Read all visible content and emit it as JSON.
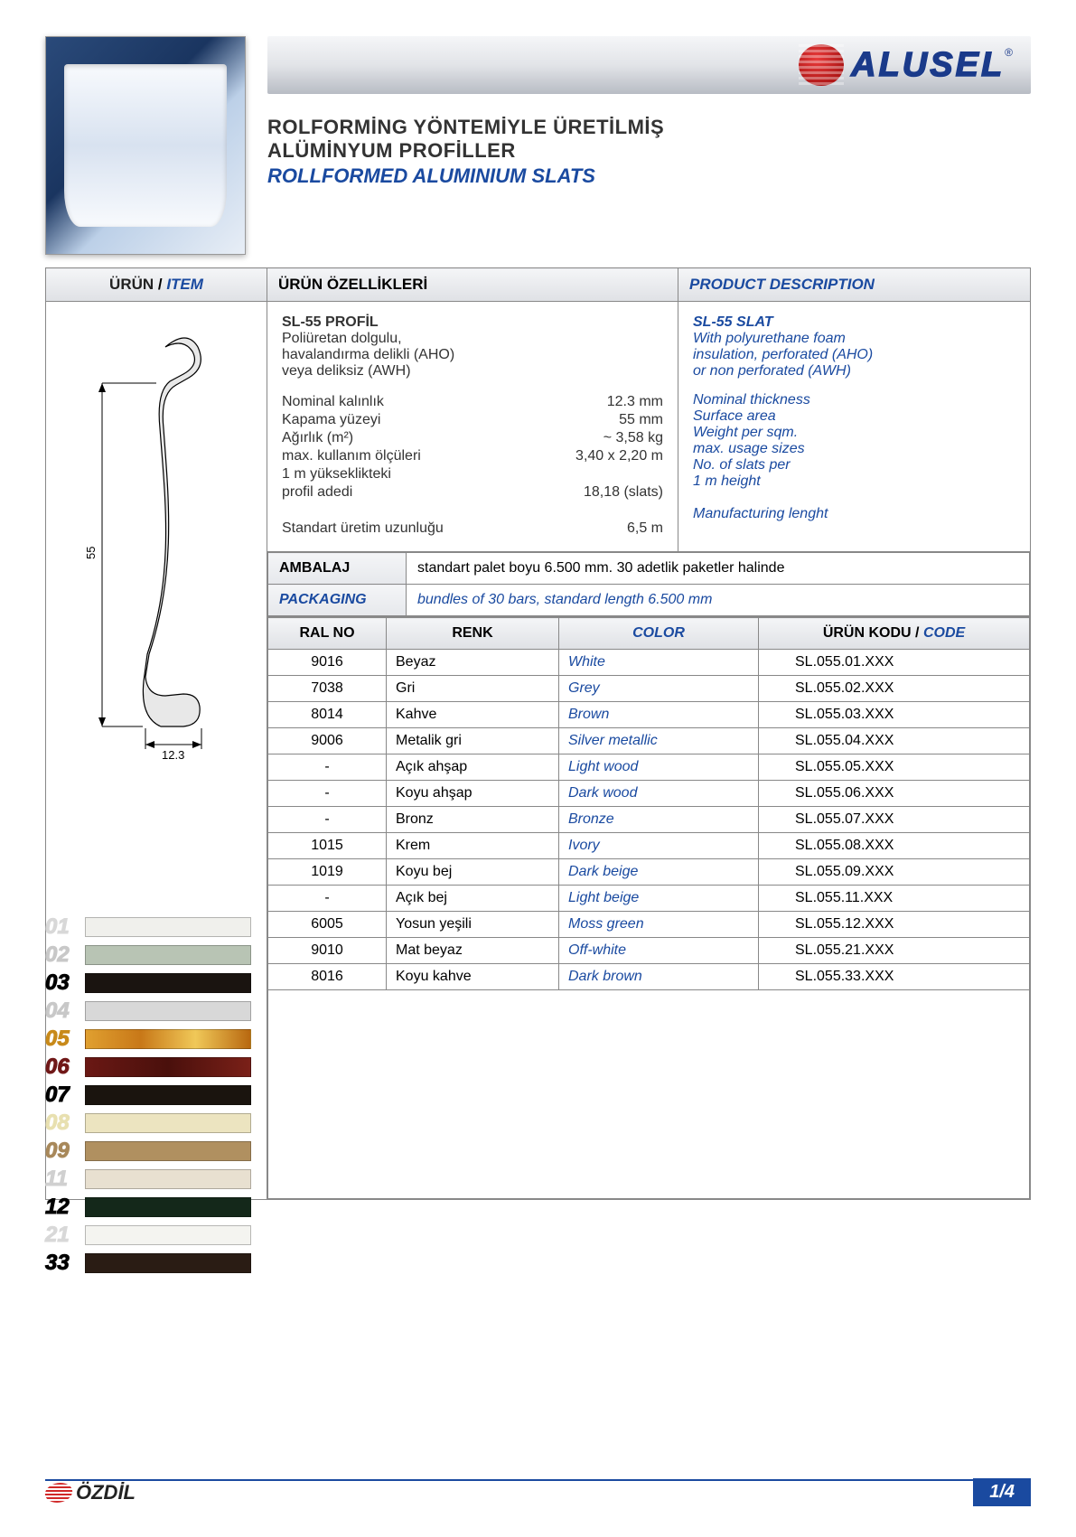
{
  "brand": "ALUSEL",
  "title_tr_line1": "ROLFORMİNG YÖNTEMİYLE ÜRETİLMİŞ",
  "title_tr_line2": "ALÜMİNYUM PROFİLLER",
  "title_en": "ROLLFORMED ALUMINIUM SLATS",
  "headers": {
    "item_tr": "ÜRÜN",
    "item_en": "ITEM",
    "props_tr": "ÜRÜN ÖZELLİKLERİ",
    "desc_en": "PRODUCT DESCRIPTION"
  },
  "product": {
    "name_tr": "SL-55 PROFİL",
    "body_tr_1": "Poliüretan dolgulu,",
    "body_tr_2": "havalandırma delikli (AHO)",
    "body_tr_3": "veya deliksiz (AWH)",
    "name_en": "SL-55 SLAT",
    "body_en_1": "With polyurethane foam",
    "body_en_2": "insulation, perforated (AHO)",
    "body_en_3": "or non perforated (AWH)"
  },
  "specs": [
    {
      "tr": "Nominal kalınlık",
      "val": "12.3 mm",
      "en": "Nominal thickness"
    },
    {
      "tr": "Kapama yüzeyi",
      "val": "55 mm",
      "en": "Surface area"
    },
    {
      "tr": "Ağırlık (m²)",
      "val": "~ 3,58 kg",
      "en": "Weight per sqm."
    },
    {
      "tr": "max. kullanım ölçüleri",
      "val": "3,40 x 2,20 m",
      "en": "max. usage sizes"
    },
    {
      "tr": "1 m yükseklikteki",
      "val": "",
      "en": "No. of slats per"
    },
    {
      "tr": "profil adedi",
      "val": "18,18 (slats)",
      "en": "1 m height"
    },
    {
      "tr": "",
      "val": "",
      "en": ""
    },
    {
      "tr": "Standart üretim uzunluğu",
      "val": "6,5 m",
      "en": "Manufacturing lenght"
    }
  ],
  "diagram": {
    "height_label": "55",
    "width_label": "12.3"
  },
  "packaging": {
    "label_tr": "AMBALAJ",
    "label_en": "PACKAGING",
    "text_tr": "standart palet boyu 6.500 mm. 30 adetlik paketler halinde",
    "text_en": "bundles of 30 bars, standard length  6.500 mm"
  },
  "color_headers": {
    "ral": "RAL NO",
    "renk": "RENK",
    "color": "COLOR",
    "code_tr": "ÜRÜN KODU",
    "code_en": "CODE"
  },
  "colors": [
    {
      "num": "01",
      "num_color": "#d8d8d8",
      "swatch": "#f0f0ec",
      "ral": "9016",
      "renk": "Beyaz",
      "color": "White",
      "code": "SL.055.01.XXX"
    },
    {
      "num": "02",
      "num_color": "#c8c8c8",
      "swatch": "#b8c4b4",
      "ral": "7038",
      "renk": "Gri",
      "color": "Grey",
      "code": "SL.055.02.XXX"
    },
    {
      "num": "03",
      "num_color": "#000000",
      "swatch": "#1a1410",
      "ral": "8014",
      "renk": "Kahve",
      "color": "Brown",
      "code": "SL.055.03.XXX"
    },
    {
      "num": "04",
      "num_color": "#c8c8c8",
      "swatch": "#d8d8d8",
      "ral": "9006",
      "renk": "Metalik gri",
      "color": "Silver metallic",
      "code": "SL.055.04.XXX"
    },
    {
      "num": "05",
      "num_color": "#c88a1a",
      "swatch": "linear-gradient(90deg,#e0a030,#c87818,#f0c858,#b86810)",
      "ral": "-",
      "renk": "Açık ahşap",
      "color": "Light wood",
      "code": "SL.055.05.XXX"
    },
    {
      "num": "06",
      "num_color": "#701818",
      "swatch": "linear-gradient(90deg,#6a1814,#4a100c,#7a2018)",
      "ral": "-",
      "renk": "Koyu ahşap",
      "color": "Dark wood",
      "code": "SL.055.06.XXX"
    },
    {
      "num": "07",
      "num_color": "#000000",
      "swatch": "#1a140e",
      "ral": "-",
      "renk": "Bronz",
      "color": "Bronze",
      "code": "SL.055.07.XXX"
    },
    {
      "num": "08",
      "num_color": "#e8e0b0",
      "swatch": "#ece4c0",
      "ral": "1015",
      "renk": "Krem",
      "color": "Ivory",
      "code": "SL.055.08.XXX"
    },
    {
      "num": "09",
      "num_color": "#a8885a",
      "swatch": "#b09060",
      "ral": "1019",
      "renk": "Koyu bej",
      "color": "Dark beige",
      "code": "SL.055.09.XXX"
    },
    {
      "num": "11",
      "num_color": "#d0d0d0",
      "swatch": "#e8e0d0",
      "ral": "-",
      "renk": "Açık bej",
      "color": "Light beige",
      "code": "SL.055.11.XXX"
    },
    {
      "num": "12",
      "num_color": "#000000",
      "swatch": "#14281a",
      "ral": "6005",
      "renk": "Yosun yeşili",
      "color": "Moss green",
      "code": "SL.055.12.XXX"
    },
    {
      "num": "21",
      "num_color": "#d8d8d8",
      "swatch": "#f4f4f0",
      "ral": "9010",
      "renk": "Mat beyaz",
      "color": "Off-white",
      "code": "SL.055.21.XXX"
    },
    {
      "num": "33",
      "num_color": "#000000",
      "swatch": "#2a1c14",
      "ral": "8016",
      "renk": "Koyu kahve",
      "color": "Dark brown",
      "code": "SL.055.33.XXX"
    }
  ],
  "footer": {
    "company": "ÖZDİL",
    "page": "1/4"
  }
}
